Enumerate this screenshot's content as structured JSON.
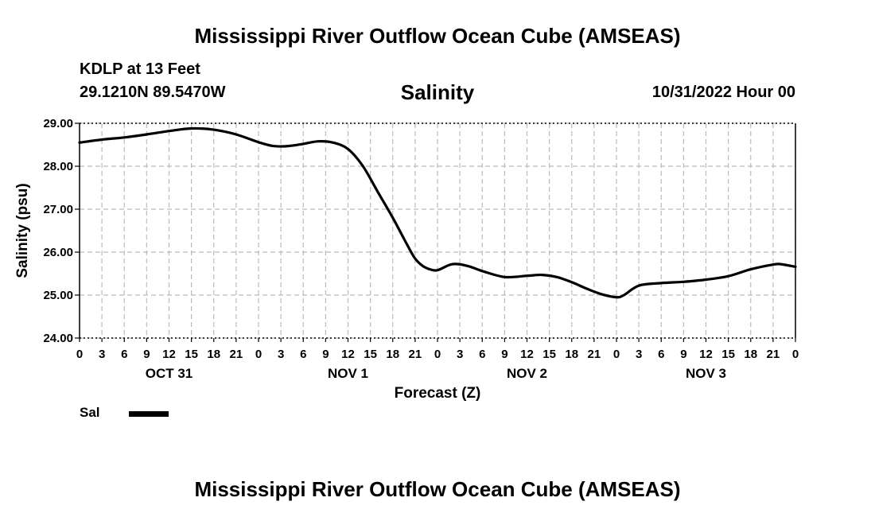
{
  "header": {
    "title": "Mississippi River Outflow Ocean Cube (AMSEAS)",
    "station": "KDLP at 13 Feet",
    "coordinates": "29.1210N  89.5470W",
    "parameter": "Salinity",
    "datetime": "10/31/2022 Hour 00"
  },
  "legend": {
    "label": "Sal",
    "color": "#000000"
  },
  "footer": {
    "title": "Mississippi River Outflow Ocean Cube (AMSEAS)"
  },
  "chart_data": {
    "type": "line",
    "title": "Salinity",
    "xlabel": "Forecast (Z)",
    "ylabel": "Salinity (psu)",
    "ylim": [
      24.0,
      29.0
    ],
    "yticks": [
      "24.00",
      "25.00",
      "26.00",
      "27.00",
      "28.00",
      "29.00"
    ],
    "xlim_hours": [
      0,
      96
    ],
    "xtick_labels": [
      "0",
      "3",
      "6",
      "9",
      "12",
      "15",
      "18",
      "21",
      "0",
      "3",
      "6",
      "9",
      "12",
      "15",
      "18",
      "21",
      "0",
      "3",
      "6",
      "9",
      "12",
      "15",
      "18",
      "21",
      "0",
      "3",
      "6",
      "9",
      "12",
      "15",
      "18",
      "21",
      "0"
    ],
    "date_labels": [
      {
        "label": "OCT 31",
        "hour": 12
      },
      {
        "label": "NOV 1",
        "hour": 36
      },
      {
        "label": "NOV 2",
        "hour": 60
      },
      {
        "label": "NOV 3",
        "hour": 84
      }
    ],
    "grid": true,
    "series": [
      {
        "name": "Sal",
        "x": [
          0,
          3,
          6,
          9,
          12,
          15,
          18,
          21,
          24,
          26,
          28,
          30,
          32,
          34,
          36,
          38,
          40,
          42,
          44,
          45,
          46,
          47,
          48,
          50,
          52,
          54,
          57,
          60,
          62,
          64,
          66,
          68,
          70,
          72,
          73,
          75,
          78,
          81,
          84,
          87,
          90,
          93,
          94,
          96
        ],
        "values": [
          28.55,
          28.62,
          28.67,
          28.74,
          28.82,
          28.88,
          28.85,
          28.74,
          28.56,
          28.47,
          28.47,
          28.52,
          28.58,
          28.55,
          28.4,
          28.0,
          27.4,
          26.8,
          26.15,
          25.85,
          25.68,
          25.6,
          25.58,
          25.72,
          25.68,
          25.56,
          25.42,
          25.45,
          25.47,
          25.42,
          25.3,
          25.15,
          25.02,
          24.95,
          25.0,
          25.22,
          25.28,
          25.31,
          25.36,
          25.44,
          25.6,
          25.71,
          25.72,
          25.66
        ]
      }
    ]
  }
}
